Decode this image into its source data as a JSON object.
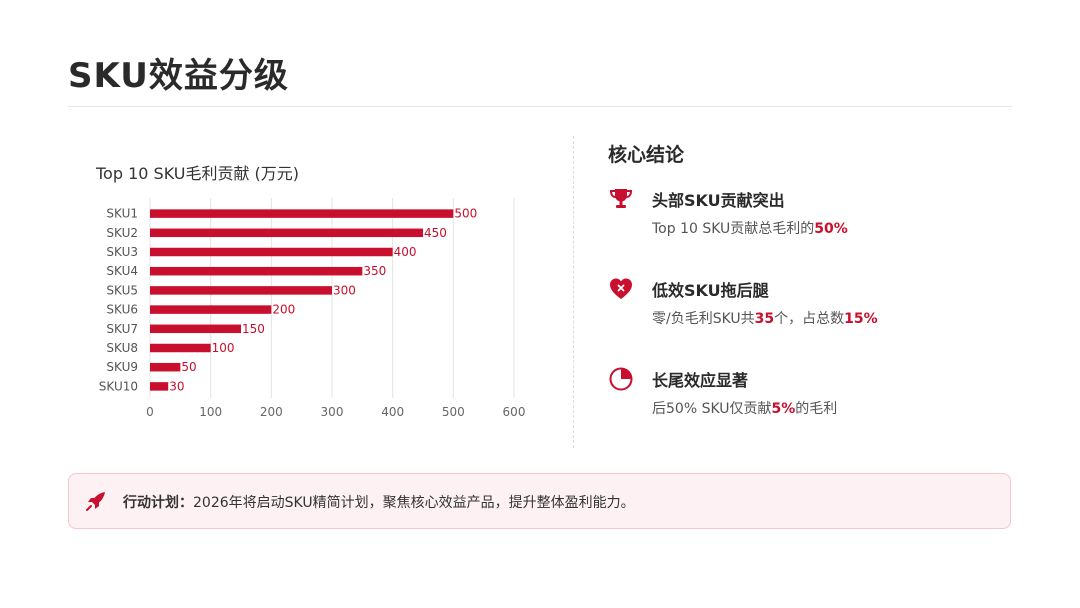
{
  "page": {
    "title": "SKU效益分级"
  },
  "chart_data": {
    "type": "bar",
    "orientation": "horizontal",
    "title": "Top 10 SKU毛利贡献 (万元)",
    "categories": [
      "SKU1",
      "SKU2",
      "SKU3",
      "SKU4",
      "SKU5",
      "SKU6",
      "SKU7",
      "SKU8",
      "SKU9",
      "SKU10"
    ],
    "values": [
      500,
      450,
      400,
      350,
      300,
      200,
      150,
      100,
      50,
      30
    ],
    "xlim": [
      0,
      600
    ],
    "xticks": [
      "0",
      "100",
      "200",
      "300",
      "400",
      "500",
      "600"
    ],
    "grid": "vertical",
    "bar_color": "#c8102e",
    "data_labels": true
  },
  "conclusions": {
    "title": "核心结论",
    "items": [
      {
        "icon": "trophy-icon",
        "title": "头部SKU贡献突出",
        "desc_pre": "Top 10 SKU贡献总毛利的",
        "hl1": "50%",
        "desc_mid": "",
        "hl2": "",
        "desc_post": ""
      },
      {
        "icon": "broken-heart-icon",
        "title": "低效SKU拖后腿",
        "desc_pre": "零/负毛利SKU共",
        "hl1": "35",
        "desc_mid": "个，占总数",
        "hl2": "15%",
        "desc_post": ""
      },
      {
        "icon": "pie-chart-icon",
        "title": "长尾效应显著",
        "desc_pre": "后50% SKU仅贡献",
        "hl1": "5%",
        "desc_mid": "",
        "hl2": "",
        "desc_post": "的毛利"
      }
    ]
  },
  "action": {
    "icon": "rocket-icon",
    "label": "行动计划：",
    "text": "2026年将启动SKU精简计划，聚焦核心效益产品，提升整体盈利能力。"
  },
  "colors": {
    "accent": "#c8102e",
    "action_bg": "#fdf1f3"
  }
}
